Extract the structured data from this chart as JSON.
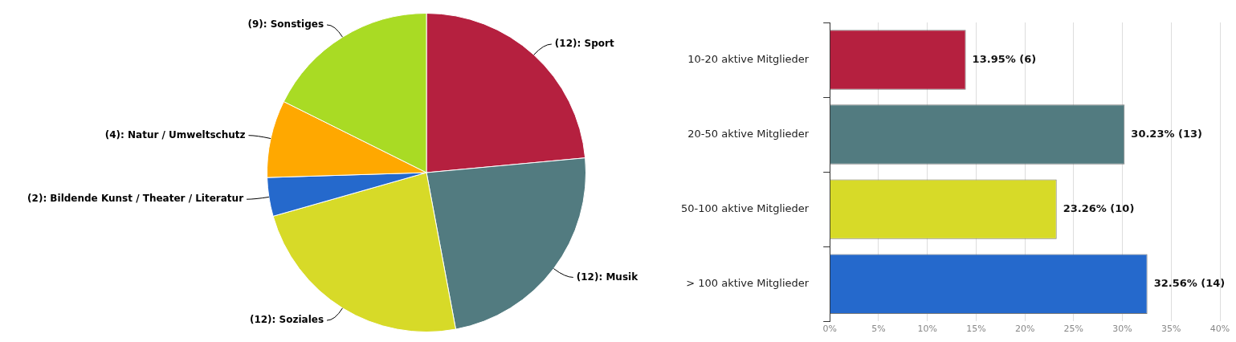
{
  "chart_data": [
    {
      "type": "pie",
      "categories": [
        "(12): Sport",
        "(12): Musik",
        "(12): Soziales",
        "(2): Bildende Kunst / Theater / Literatur",
        "(4): Natur / Umweltschutz",
        "(9): Sonstiges"
      ],
      "values": [
        12,
        12,
        12,
        2,
        4,
        9
      ],
      "colors": [
        "#b5203f",
        "#527b80",
        "#d7da28",
        "#2569cc",
        "#ffa800",
        "#a9db24"
      ]
    },
    {
      "type": "bar",
      "orientation": "horizontal",
      "categories": [
        "10-20 aktive Mitglieder",
        "20-50 aktive Mitglieder",
        "50-100 aktive Mitglieder",
        "> 100 aktive Mitglieder"
      ],
      "values": [
        13.95,
        30.23,
        23.26,
        32.56
      ],
      "colors": [
        "#b5203f",
        "#527b80",
        "#d7da28",
        "#2569cc"
      ],
      "value_labels": [
        "13.95% (6)",
        "30.23% (13)",
        "23.26% (10)",
        "32.56% (14)"
      ],
      "xlim": [
        0,
        40
      ],
      "xticks": [
        {
          "value": 0,
          "label": "0%"
        },
        {
          "value": 5,
          "label": "5%"
        },
        {
          "value": 10,
          "label": "10%"
        },
        {
          "value": 15,
          "label": "15%"
        },
        {
          "value": 20,
          "label": "20%"
        },
        {
          "value": 25,
          "label": "25%"
        },
        {
          "value": 30,
          "label": "30%"
        },
        {
          "value": 35,
          "label": "35%"
        },
        {
          "value": 40,
          "label": "40%"
        }
      ],
      "grid": "x"
    }
  ]
}
